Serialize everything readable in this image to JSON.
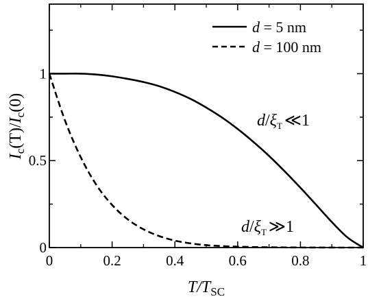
{
  "chart_data": {
    "type": "line",
    "title": "",
    "xlabel": {
      "main": "T/T",
      "sub": "SC"
    },
    "ylabel": {
      "a": "I",
      "a_sub": "c",
      "b": "(T)/",
      "c": "I",
      "c_sub": "c",
      "d": "(0)"
    },
    "xlim": [
      0,
      1
    ],
    "ylim": [
      0,
      1.4
    ],
    "xticks": [
      0,
      0.2,
      0.4,
      0.6,
      0.8,
      1
    ],
    "xtick_labels": [
      "0",
      "0.2",
      "0.4",
      "0.6",
      "0.8",
      "1"
    ],
    "yticks": [
      0,
      0.5,
      1
    ],
    "ytick_labels": [
      "0",
      "0.5",
      "1"
    ],
    "grid": false,
    "legend_position": "top-right",
    "series": [
      {
        "name": "d = 5 nm",
        "style": "solid",
        "color": "#000000",
        "x": [
          0,
          0.05,
          0.1,
          0.15,
          0.2,
          0.25,
          0.3,
          0.35,
          0.4,
          0.45,
          0.5,
          0.55,
          0.6,
          0.65,
          0.7,
          0.75,
          0.8,
          0.85,
          0.9,
          0.95,
          1.0
        ],
        "y": [
          1.0,
          1.0,
          1.0,
          0.995,
          0.985,
          0.97,
          0.952,
          0.928,
          0.895,
          0.855,
          0.805,
          0.748,
          0.682,
          0.608,
          0.527,
          0.438,
          0.344,
          0.246,
          0.147,
          0.058,
          0.0
        ]
      },
      {
        "name": "d = 100 nm",
        "style": "dashed",
        "color": "#000000",
        "x": [
          0,
          0.05,
          0.1,
          0.15,
          0.2,
          0.25,
          0.3,
          0.35,
          0.4,
          0.45,
          0.5,
          0.55,
          0.6,
          0.65,
          0.7,
          0.75,
          0.8,
          0.85,
          0.9,
          0.95,
          1.0
        ],
        "y": [
          1.0,
          0.73,
          0.52,
          0.36,
          0.245,
          0.162,
          0.105,
          0.066,
          0.04,
          0.024,
          0.014,
          0.0085,
          0.0051,
          0.003,
          0.0018,
          0.001,
          0.0005,
          0.0002,
          0.0001,
          0.0,
          0.0
        ]
      }
    ],
    "legend": {
      "entries": [
        {
          "prefix": "d",
          "suffix": " = 5 nm",
          "style": "solid"
        },
        {
          "prefix": "d",
          "suffix": " = 100 nm",
          "style": "dashed"
        }
      ]
    },
    "annotations": [
      {
        "id": "thin",
        "d": "d",
        "slash": "/",
        "xi": "ξ",
        "xi_sub": "T",
        "rel": "≪1",
        "x": 0.83,
        "y": 0.72
      },
      {
        "id": "thick",
        "d": "d",
        "slash": "/",
        "xi": "ξ",
        "xi_sub": "T",
        "rel": "≫1",
        "x": 0.83,
        "y": 0.13
      }
    ]
  }
}
